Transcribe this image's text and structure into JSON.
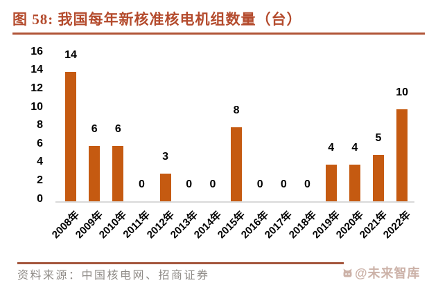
{
  "figure": {
    "title": "图 58:  我国每年新核准核电机组数量（台）",
    "source_note": "资料来源：中国核电网、招商证券",
    "watermark_text": "@未来智库"
  },
  "colors": {
    "accent_title": "#b44b2d",
    "title_rule": "#b05336",
    "footer_rule": "#a4563c",
    "bar": "#c55a11",
    "axis_line": "#d9d9d9",
    "data_label": "#000000",
    "source_text": "#8f8b87",
    "watermark": "#ccb2a8"
  },
  "chart_data": {
    "type": "bar",
    "title": "我国每年新核准核电机组数量（台）",
    "categories": [
      "2008年",
      "2009年",
      "2010年",
      "2011年",
      "2012年",
      "2013年",
      "2014年",
      "2015年",
      "2016年",
      "2017年",
      "2018年",
      "2019年",
      "2020年",
      "2021年",
      "2022年"
    ],
    "values": [
      14,
      6,
      6,
      0,
      3,
      0,
      0,
      8,
      0,
      0,
      0,
      4,
      4,
      5,
      10
    ],
    "xlabel": "",
    "ylabel": "",
    "ylim": [
      0,
      16
    ],
    "yticks": [
      0,
      2,
      4,
      6,
      8,
      10,
      12,
      14,
      16
    ],
    "grid": false,
    "legend": "none",
    "data_labels": true,
    "x_tick_rotation_deg": 45
  }
}
